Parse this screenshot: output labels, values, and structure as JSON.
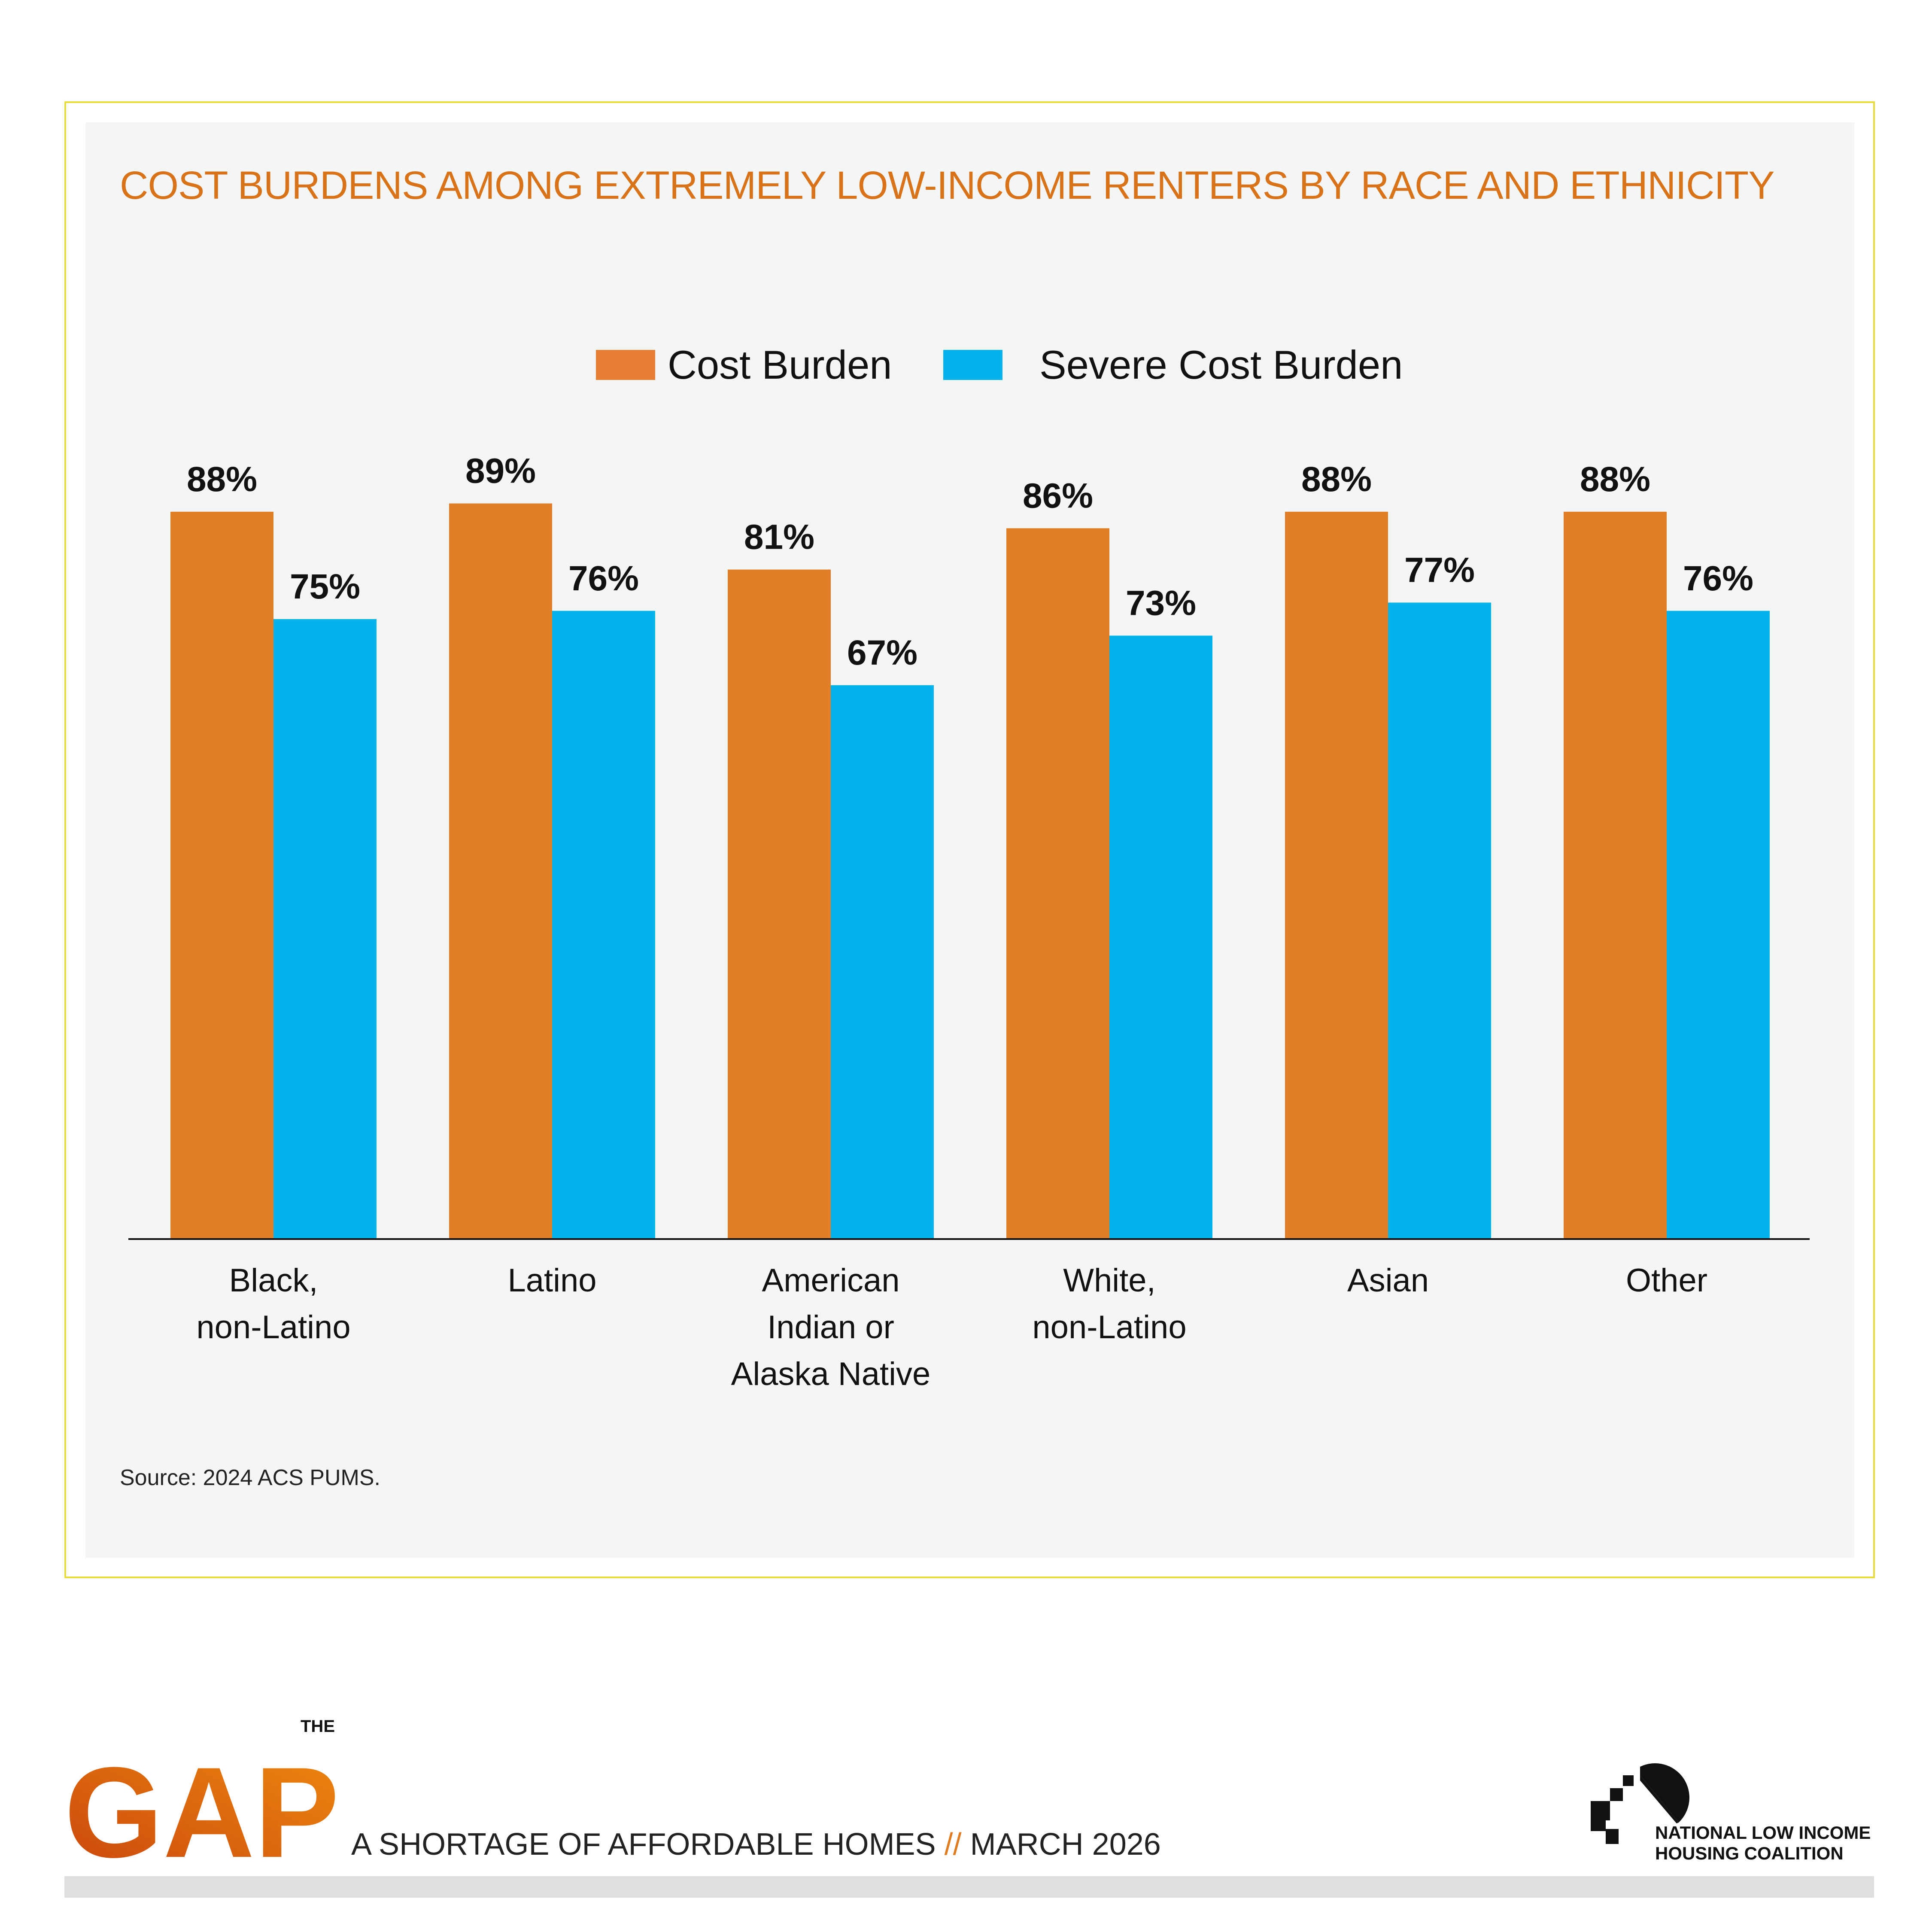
{
  "chart_data": {
    "type": "bar",
    "title": "COST BURDENS AMONG EXTREMELY LOW-INCOME RENTERS BY RACE AND ETHNICITY",
    "categories": [
      [
        "Black,",
        "non-Latino"
      ],
      [
        "Latino"
      ],
      [
        "American",
        "Indian or",
        "Alaska Native"
      ],
      [
        "White,",
        "non-Latino"
      ],
      [
        "Asian"
      ],
      [
        "Other"
      ]
    ],
    "series": [
      {
        "name": "Cost Burden",
        "color": "#e07f27",
        "values": [
          88,
          89,
          81,
          86,
          88,
          88
        ],
        "labels": [
          "88%",
          "89%",
          "81%",
          "86%",
          "88%",
          "88%"
        ]
      },
      {
        "name": "Severe Cost Burden",
        "color": "#02b3ec",
        "values": [
          75,
          76,
          67,
          73,
          77,
          76
        ],
        "labels": [
          "75%",
          "76%",
          "67%",
          "73%",
          "77%",
          "76%"
        ]
      }
    ],
    "xlabel": "",
    "ylabel": "",
    "ylim": [
      0,
      100
    ],
    "grid": false,
    "legend": "top-center",
    "source": "Source: 2024 ACS PUMS."
  },
  "footer": {
    "logo_small": "THE",
    "logo_big": "GAP",
    "tagline_a": "A SHORTAGE OF AFFORDABLE HOMES",
    "tagline_sep": "//",
    "tagline_b": "MARCH 2026",
    "org_line1": "NATIONAL LOW INCOME",
    "org_line2": "HOUSING COALITION"
  }
}
